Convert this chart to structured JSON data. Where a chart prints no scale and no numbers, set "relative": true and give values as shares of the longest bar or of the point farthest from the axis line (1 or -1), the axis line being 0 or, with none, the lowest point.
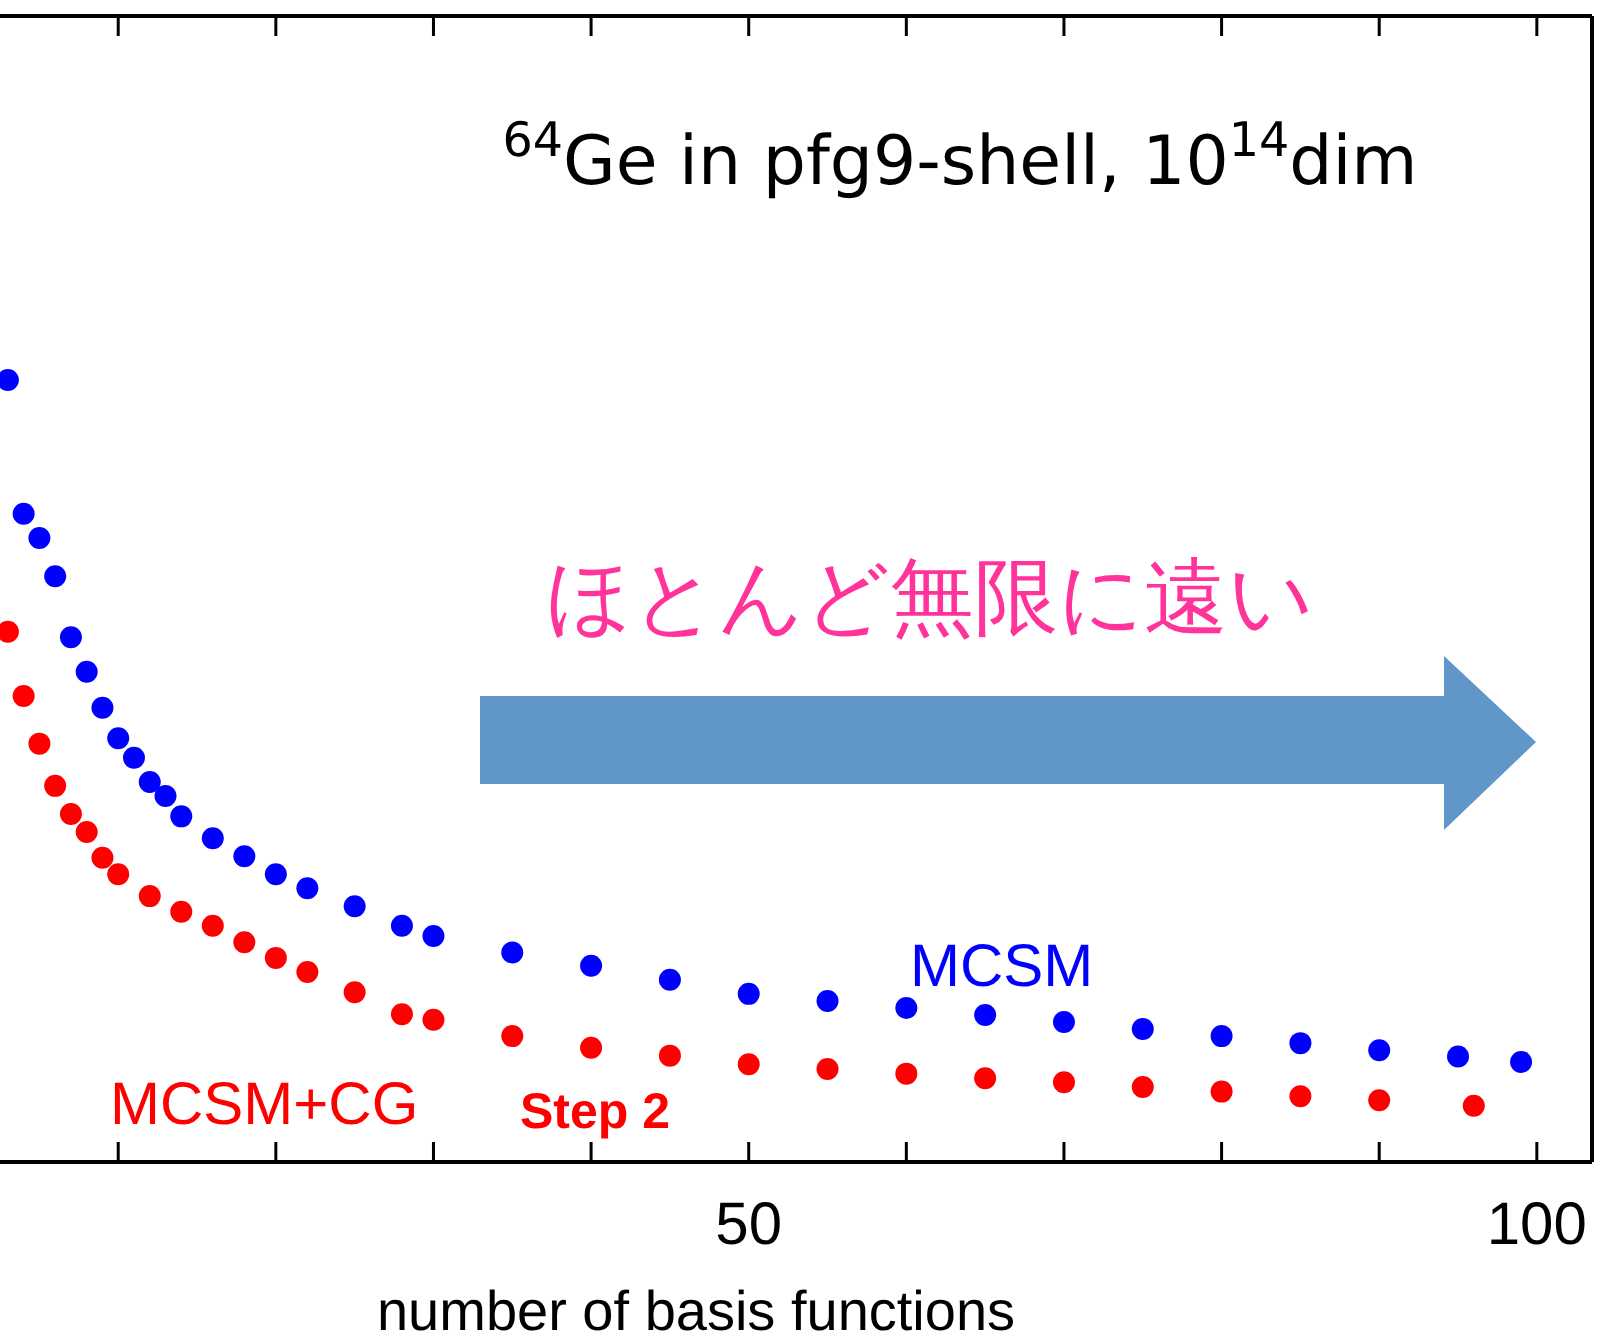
{
  "chart_data": {
    "type": "scatter",
    "title": "$^{64}$Ge in pfg9-shell, 10$^{14}$dim",
    "xlabel": "number of basis functions",
    "xlim": [
      2.5,
      103.5
    ],
    "xticks": [
      {
        "value": 10,
        "label": null
      },
      {
        "value": 20,
        "label": null
      },
      {
        "value": 30,
        "label": null
      },
      {
        "value": 40,
        "label": null
      },
      50,
      {
        "value": 60,
        "label": null
      },
      {
        "value": 70,
        "label": null
      },
      {
        "value": 80,
        "label": null
      },
      {
        "value": 90,
        "label": null
      },
      100
    ],
    "relative": true,
    "marker": "circle",
    "series": [
      {
        "name": "MCSM",
        "color": "#0000ff",
        "x": [
          3,
          4,
          5,
          6,
          7,
          8,
          9,
          10,
          11,
          12,
          13,
          14,
          16,
          18,
          20,
          22,
          25,
          28,
          30,
          35,
          40,
          45,
          50,
          55,
          60,
          65,
          70,
          75,
          80,
          85,
          90,
          95,
          99
        ],
        "values": [
          1.0,
          0.829,
          0.798,
          0.749,
          0.671,
          0.627,
          0.581,
          0.542,
          0.517,
          0.486,
          0.468,
          0.442,
          0.414,
          0.391,
          0.368,
          0.35,
          0.327,
          0.302,
          0.289,
          0.268,
          0.251,
          0.233,
          0.215,
          0.206,
          0.197,
          0.188,
          0.179,
          0.17,
          0.161,
          0.152,
          0.143,
          0.135,
          0.128
        ]
      },
      {
        "name": "MCSM+CG",
        "color": "#ff0000",
        "x": [
          3,
          4,
          5,
          6,
          7,
          8,
          9,
          10,
          12,
          14,
          16,
          18,
          20,
          22,
          25,
          28,
          30,
          35,
          40,
          45,
          50,
          55,
          60,
          65,
          70,
          75,
          80,
          85,
          90,
          96
        ],
        "values": [
          0.678,
          0.596,
          0.535,
          0.481,
          0.445,
          0.422,
          0.389,
          0.368,
          0.34,
          0.32,
          0.302,
          0.281,
          0.261,
          0.243,
          0.217,
          0.189,
          0.182,
          0.161,
          0.146,
          0.136,
          0.125,
          0.119,
          0.113,
          0.107,
          0.102,
          0.096,
          0.09,
          0.084,
          0.079,
          0.072
        ]
      }
    ],
    "annotations": [
      "ほとんど無限に遠い",
      "Step 2"
    ]
  }
}
